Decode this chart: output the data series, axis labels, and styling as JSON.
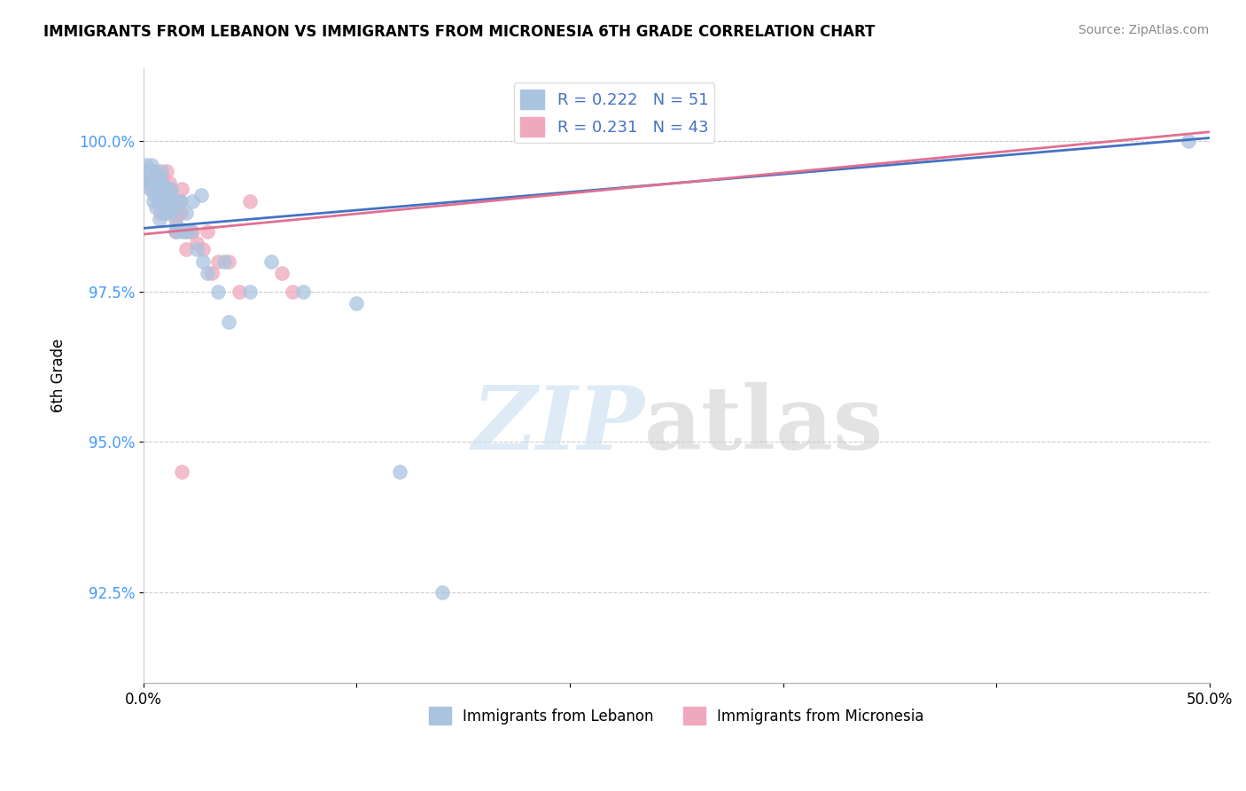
{
  "title": "IMMIGRANTS FROM LEBANON VS IMMIGRANTS FROM MICRONESIA 6TH GRADE CORRELATION CHART",
  "source": "Source: ZipAtlas.com",
  "ylabel": "6th Grade",
  "xlim": [
    0.0,
    50.0
  ],
  "ylim": [
    91.0,
    101.2
  ],
  "yticks": [
    92.5,
    95.0,
    97.5,
    100.0
  ],
  "ytick_labels": [
    "92.5%",
    "95.0%",
    "97.5%",
    "100.0%"
  ],
  "xtick_labels": [
    "0.0%",
    "50.0%"
  ],
  "blue_color": "#aac4e0",
  "pink_color": "#f0a8bc",
  "blue_line_color": "#4472c4",
  "pink_line_color": "#e07090",
  "blue_R": 0.222,
  "blue_N": 51,
  "pink_R": 0.231,
  "pink_N": 43,
  "blue_scatter_x": [
    0.1,
    0.15,
    0.2,
    0.25,
    0.3,
    0.35,
    0.4,
    0.45,
    0.5,
    0.55,
    0.6,
    0.65,
    0.7,
    0.75,
    0.8,
    0.85,
    0.9,
    0.95,
    1.0,
    1.1,
    1.2,
    1.3,
    1.4,
    1.5,
    1.6,
    1.8,
    2.0,
    2.2,
    2.5,
    2.8,
    3.0,
    3.5,
    4.0,
    5.0,
    6.0,
    7.5,
    10.0,
    12.0,
    14.0,
    0.3,
    0.5,
    0.7,
    1.05,
    1.35,
    1.55,
    1.75,
    1.95,
    2.3,
    2.7,
    3.8,
    49.0
  ],
  "blue_scatter_y": [
    99.5,
    99.6,
    99.4,
    99.3,
    99.2,
    99.5,
    99.6,
    99.0,
    99.1,
    99.3,
    98.9,
    99.4,
    99.0,
    98.7,
    99.2,
    99.5,
    99.3,
    98.8,
    99.0,
    98.8,
    99.1,
    99.2,
    98.9,
    98.5,
    99.0,
    98.5,
    98.8,
    98.5,
    98.2,
    98.0,
    97.8,
    97.5,
    97.0,
    97.5,
    98.0,
    97.5,
    97.3,
    94.5,
    92.5,
    99.5,
    99.3,
    99.4,
    99.2,
    98.8,
    98.6,
    99.0,
    98.5,
    99.0,
    99.1,
    98.0,
    100.0
  ],
  "pink_scatter_x": [
    0.1,
    0.2,
    0.3,
    0.4,
    0.5,
    0.6,
    0.7,
    0.8,
    0.9,
    1.0,
    1.1,
    1.2,
    1.3,
    1.4,
    1.5,
    1.6,
    1.7,
    1.8,
    2.0,
    2.2,
    2.5,
    3.0,
    3.5,
    4.5,
    6.5,
    0.35,
    0.55,
    0.75,
    0.95,
    1.15,
    1.35,
    1.55,
    1.75,
    2.3,
    2.8,
    3.2,
    4.0,
    5.0,
    7.0,
    2.0,
    1.5,
    0.8,
    1.8
  ],
  "pink_scatter_y": [
    99.4,
    99.5,
    99.3,
    99.2,
    99.4,
    99.5,
    99.3,
    99.2,
    99.4,
    99.0,
    99.5,
    99.3,
    99.2,
    98.9,
    98.7,
    98.8,
    99.0,
    99.2,
    98.5,
    98.5,
    98.3,
    98.5,
    98.0,
    97.5,
    97.8,
    99.4,
    99.3,
    99.2,
    99.0,
    99.2,
    99.0,
    98.5,
    98.8,
    98.5,
    98.2,
    97.8,
    98.0,
    99.0,
    97.5,
    98.2,
    98.5,
    98.8,
    94.5
  ],
  "blue_line_x0": 0.0,
  "blue_line_y0": 98.55,
  "blue_line_x1": 50.0,
  "blue_line_y1": 100.05,
  "pink_line_x0": 0.0,
  "pink_line_y0": 98.45,
  "pink_line_x1": 50.0,
  "pink_line_y1": 100.15
}
